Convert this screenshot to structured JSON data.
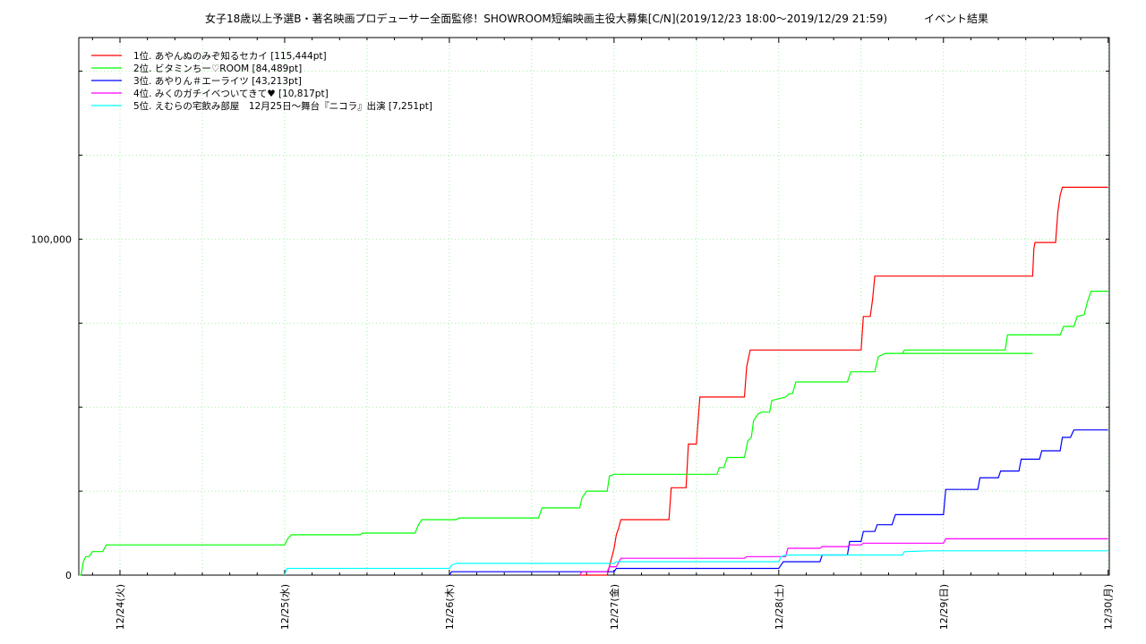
{
  "chart_data": {
    "type": "line",
    "title": "女子18歳以上予選B・著名映画プロデューサー全面監修！SHOWROOM短編映画主役大募集[C/N](2019/12/23 18:00〜2019/12/29 21:59)",
    "subtitle": "イベント結果",
    "xlabel": "",
    "ylabel": "",
    "xlim": [
      "2019-12-23 18:00",
      "2019-12-30 00:10"
    ],
    "ylim": [
      0,
      160000
    ],
    "x_ticks": [
      {
        "date": "2019-12-24",
        "label": "12/24(火)"
      },
      {
        "date": "2019-12-25",
        "label": "12/25(水)"
      },
      {
        "date": "2019-12-26",
        "label": "12/26(木)"
      },
      {
        "date": "2019-12-27",
        "label": "12/27(金)"
      },
      {
        "date": "2019-12-28",
        "label": "12/28(土)"
      },
      {
        "date": "2019-12-29",
        "label": "12/29(日)"
      },
      {
        "date": "2019-12-30",
        "label": "12/30(月)"
      }
    ],
    "y_ticks": [
      {
        "value": 0,
        "label": "0"
      },
      {
        "value": 100000,
        "label": "100,000"
      }
    ],
    "grid": true,
    "legend_position": "top-left",
    "series": [
      {
        "name": "1位. あやんぬのみぞ知るセカイ [115,444pt]",
        "color": "#ff0000",
        "points": [
          [
            "2019-12-26 19:00",
            0
          ],
          [
            "2019-12-26 23:00",
            0
          ],
          [
            "2019-12-27 00:00",
            8000
          ],
          [
            "2019-12-27 00:20",
            12000
          ],
          [
            "2019-12-27 00:40",
            14000
          ],
          [
            "2019-12-27 01:00",
            16500
          ],
          [
            "2019-12-27 08:00",
            16500
          ],
          [
            "2019-12-27 08:20",
            26000
          ],
          [
            "2019-12-27 10:30",
            26000
          ],
          [
            "2019-12-27 10:50",
            39000
          ],
          [
            "2019-12-27 12:00",
            39000
          ],
          [
            "2019-12-27 12:30",
            53000
          ],
          [
            "2019-12-27 13:00",
            53000
          ],
          [
            "2019-12-27 19:00",
            53000
          ],
          [
            "2019-12-27 19:20",
            62000
          ],
          [
            "2019-12-27 19:50",
            67000
          ],
          [
            "2019-12-28 12:00",
            67000
          ],
          [
            "2019-12-28 12:20",
            77000
          ],
          [
            "2019-12-28 13:20",
            77000
          ],
          [
            "2019-12-28 13:40",
            82000
          ],
          [
            "2019-12-28 14:00",
            89000
          ],
          [
            "2019-12-29 13:00",
            89000
          ],
          [
            "2019-12-29 13:10",
            97000
          ],
          [
            "2019-12-29 13:20",
            99000
          ],
          [
            "2019-12-29 16:20",
            99000
          ],
          [
            "2019-12-29 16:40",
            108000
          ],
          [
            "2019-12-29 17:00",
            113000
          ],
          [
            "2019-12-29 17:20",
            115444
          ],
          [
            "2019-12-30 00:00",
            115444
          ]
        ]
      },
      {
        "name": "2位. ビタミンちー♡ROOM [84,489pt]",
        "color": "#00ff00",
        "points": [
          [
            "2019-12-23 18:00",
            0
          ],
          [
            "2019-12-23 18:20",
            0
          ],
          [
            "2019-12-23 18:40",
            4000
          ],
          [
            "2019-12-23 19:00",
            5500
          ],
          [
            "2019-12-23 19:30",
            5500
          ],
          [
            "2019-12-23 20:00",
            7000
          ],
          [
            "2019-12-23 21:30",
            7000
          ],
          [
            "2019-12-23 22:00",
            9000
          ],
          [
            "2019-12-25 00:00",
            9000
          ],
          [
            "2019-12-25 00:30",
            11000
          ],
          [
            "2019-12-25 01:00",
            12000
          ],
          [
            "2019-12-25 11:00",
            12000
          ],
          [
            "2019-12-25 11:20",
            12500
          ],
          [
            "2019-12-25 19:00",
            12500
          ],
          [
            "2019-12-25 19:30",
            15000
          ],
          [
            "2019-12-25 20:00",
            16500
          ],
          [
            "2019-12-26 01:00",
            16500
          ],
          [
            "2019-12-26 01:20",
            17000
          ],
          [
            "2019-12-26 13:00",
            17000
          ],
          [
            "2019-12-26 13:30",
            20000
          ],
          [
            "2019-12-26 19:00",
            20000
          ],
          [
            "2019-12-26 19:20",
            23000
          ],
          [
            "2019-12-26 20:00",
            25000
          ],
          [
            "2019-12-26 23:00",
            25000
          ],
          [
            "2019-12-26 23:20",
            29500
          ],
          [
            "2019-12-27 00:00",
            30000
          ],
          [
            "2019-12-27 15:00",
            30000
          ],
          [
            "2019-12-27 15:20",
            32000
          ],
          [
            "2019-12-27 16:00",
            32000
          ],
          [
            "2019-12-27 16:30",
            35000
          ],
          [
            "2019-12-27 19:00",
            35000
          ],
          [
            "2019-12-27 19:30",
            40000
          ],
          [
            "2019-12-27 20:00",
            41000
          ],
          [
            "2019-12-27 20:20",
            46000
          ],
          [
            "2019-12-27 21:00",
            48000
          ],
          [
            "2019-12-27 21:30",
            48500
          ],
          [
            "2019-12-27 22:40",
            48500
          ],
          [
            "2019-12-27 23:00",
            52000
          ],
          [
            "2019-12-28 01:00",
            53000
          ],
          [
            "2019-12-28 01:30",
            54000
          ],
          [
            "2019-12-28 02:00",
            54000
          ],
          [
            "2019-12-28 02:30",
            57500
          ],
          [
            "2019-12-28 10:00",
            57500
          ],
          [
            "2019-12-28 10:30",
            60500
          ],
          [
            "2019-12-28 14:00",
            60500
          ],
          [
            "2019-12-28 14:30",
            65000
          ],
          [
            "2019-12-28 15:30",
            66000
          ],
          [
            "2019-12-29 13:00",
            66000
          ],
          [
            "2019-12-28 18:00",
            66000
          ],
          [
            "2019-12-28 18:20",
            67000
          ],
          [
            "2019-12-29 09:00",
            67000
          ],
          [
            "2019-12-29 09:20",
            71500
          ],
          [
            "2019-12-29 17:00",
            71500
          ],
          [
            "2019-12-29 17:30",
            74000
          ],
          [
            "2019-12-29 19:00",
            74000
          ],
          [
            "2019-12-29 19:30",
            77000
          ],
          [
            "2019-12-29 20:30",
            77500
          ],
          [
            "2019-12-29 21:00",
            81500
          ],
          [
            "2019-12-29 21:30",
            84489
          ],
          [
            "2019-12-30 00:00",
            84489
          ]
        ]
      },
      {
        "name": "3位. あやりん＃エーライツ [43,213pt]",
        "color": "#0000ff",
        "points": [
          [
            "2019-12-26 00:00",
            0
          ],
          [
            "2019-12-26 00:20",
            1000
          ],
          [
            "2019-12-27 00:00",
            1000
          ],
          [
            "2019-12-27 00:20",
            2000
          ],
          [
            "2019-12-28 00:00",
            2000
          ],
          [
            "2019-12-28 00:20",
            3000
          ],
          [
            "2019-12-28 00:40",
            4000
          ],
          [
            "2019-12-28 06:00",
            4000
          ],
          [
            "2019-12-28 06:20",
            6000
          ],
          [
            "2019-12-28 10:00",
            6000
          ],
          [
            "2019-12-28 10:20",
            10000
          ],
          [
            "2019-12-28 12:00",
            10000
          ],
          [
            "2019-12-28 12:20",
            13000
          ],
          [
            "2019-12-28 14:00",
            13000
          ],
          [
            "2019-12-28 14:20",
            15000
          ],
          [
            "2019-12-28 16:30",
            15000
          ],
          [
            "2019-12-28 17:00",
            18000
          ],
          [
            "2019-12-28 18:00",
            18000
          ],
          [
            "2019-12-29 00:00",
            18000
          ],
          [
            "2019-12-29 00:20",
            25500
          ],
          [
            "2019-12-29 05:00",
            25500
          ],
          [
            "2019-12-29 05:20",
            29000
          ],
          [
            "2019-12-29 08:00",
            29000
          ],
          [
            "2019-12-29 08:20",
            31000
          ],
          [
            "2019-12-29 11:00",
            31000
          ],
          [
            "2019-12-29 11:20",
            34500
          ],
          [
            "2019-12-29 14:00",
            34500
          ],
          [
            "2019-12-29 14:20",
            37000
          ],
          [
            "2019-12-29 17:00",
            37000
          ],
          [
            "2019-12-29 17:20",
            41000
          ],
          [
            "2019-12-29 18:30",
            41000
          ],
          [
            "2019-12-29 19:00",
            43213
          ],
          [
            "2019-12-30 00:00",
            43213
          ]
        ]
      },
      {
        "name": "4位. みくのガチイベついてきて♥ [10,817pt]",
        "color": "#ff00ff",
        "points": [
          [
            "2019-12-26 19:00",
            0
          ],
          [
            "2019-12-26 19:20",
            1000
          ],
          [
            "2019-12-26 23:00",
            1000
          ],
          [
            "2019-12-26 23:20",
            2500
          ],
          [
            "2019-12-27 00:20",
            2500
          ],
          [
            "2019-12-27 01:00",
            5000
          ],
          [
            "2019-12-27 19:00",
            5000
          ],
          [
            "2019-12-27 19:20",
            5500
          ],
          [
            "2019-12-28 01:00",
            5500
          ],
          [
            "2019-12-28 01:20",
            8000
          ],
          [
            "2019-12-28 06:00",
            8000
          ],
          [
            "2019-12-28 06:20",
            8500
          ],
          [
            "2019-12-28 10:00",
            8500
          ],
          [
            "2019-12-28 10:20",
            9000
          ],
          [
            "2019-12-28 12:00",
            9000
          ],
          [
            "2019-12-28 12:20",
            9500
          ],
          [
            "2019-12-29 00:00",
            9500
          ],
          [
            "2019-12-29 00:20",
            10817
          ],
          [
            "2019-12-30 00:00",
            10817
          ]
        ]
      },
      {
        "name": "5位. えむらの宅飲み部屋　12月25日〜舞台『ニコラ』出演 [7,251pt]",
        "color": "#00ffff",
        "points": [
          [
            "2019-12-25 00:00",
            0
          ],
          [
            "2019-12-25 00:20",
            2000
          ],
          [
            "2019-12-26 00:00",
            2000
          ],
          [
            "2019-12-26 00:20",
            3000
          ],
          [
            "2019-12-26 01:00",
            3500
          ],
          [
            "2019-12-27 00:00",
            3500
          ],
          [
            "2019-12-27 00:20",
            4000
          ],
          [
            "2019-12-28 00:00",
            4000
          ],
          [
            "2019-12-28 00:20",
            5500
          ],
          [
            "2019-12-28 01:00",
            6000
          ],
          [
            "2019-12-28 18:00",
            6000
          ],
          [
            "2019-12-28 18:20",
            7000
          ],
          [
            "2019-12-28 22:00",
            7251
          ],
          [
            "2019-12-30 00:00",
            7251
          ]
        ]
      }
    ]
  }
}
